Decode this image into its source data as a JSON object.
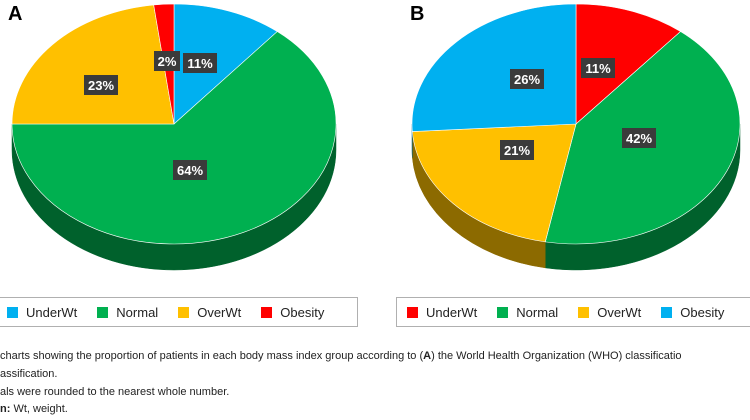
{
  "chart_data": [
    {
      "type": "pie",
      "panel": "A",
      "categories": [
        "UnderWt",
        "Normal",
        "OverWt",
        "Obesity"
      ],
      "values": [
        11,
        64,
        23,
        2
      ],
      "labels": [
        "11%",
        "64%",
        "23%",
        "2%"
      ],
      "colors": [
        "#00b0f0",
        "#00b050",
        "#ffc000",
        "#ff0000"
      ],
      "slice_order": [
        "UnderWt",
        "Normal",
        "OverWt",
        "Obesity"
      ],
      "legend": {
        "placement": "bottom",
        "entries": [
          {
            "label": "UnderWt",
            "color": "#00b0f0"
          },
          {
            "label": "Normal",
            "color": "#00b050"
          },
          {
            "label": "OverWt",
            "color": "#ffc000"
          },
          {
            "label": "Obesity",
            "color": "#ff0000"
          }
        ]
      }
    },
    {
      "type": "pie",
      "panel": "B",
      "categories": [
        "UnderWt",
        "Normal",
        "OverWt",
        "Obesity"
      ],
      "values": [
        11,
        42,
        21,
        26
      ],
      "labels": [
        "11%",
        "42%",
        "21%",
        "26%"
      ],
      "colors": [
        "#ff0000",
        "#00b050",
        "#ffc000",
        "#00b0f0"
      ],
      "slice_order": [
        "UnderWt",
        "Normal",
        "OverWt",
        "Obesity"
      ],
      "legend": {
        "placement": "bottom",
        "entries": [
          {
            "label": "UnderWt",
            "color": "#ff0000"
          },
          {
            "label": "Normal",
            "color": "#00b050"
          },
          {
            "label": "OverWt",
            "color": "#ffc000"
          },
          {
            "label": "Obesity",
            "color": "#00b0f0"
          }
        ]
      }
    }
  ],
  "caption": {
    "line1_a": "charts showing the proportion of patients in each body mass index group according to (",
    "line1_b": "A",
    "line1_c": ") the World Health Organization (WHO) classificatio",
    "line2": "assification.",
    "line3": "als were rounded to the nearest whole number.",
    "line4_label": "n:",
    "line4_text": " Wt, weight."
  }
}
